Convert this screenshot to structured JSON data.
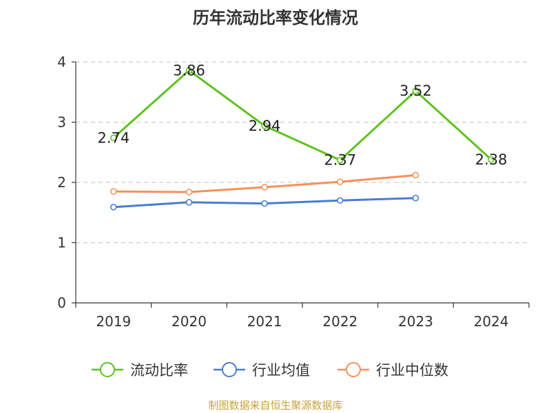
{
  "chart_data": {
    "type": "line",
    "title": "历年流动比率变化情况",
    "categories": [
      "2019",
      "2020",
      "2021",
      "2022",
      "2023",
      "2024"
    ],
    "ylim": [
      0,
      4
    ],
    "yticks": [
      "0",
      "1",
      "2",
      "3",
      "4"
    ],
    "grid": true,
    "legend_position": "bottom",
    "series": [
      {
        "name": "流动比率",
        "color": "#5cc31c",
        "values": [
          2.74,
          3.86,
          2.94,
          2.37,
          3.52,
          2.38
        ],
        "labels": [
          "2.74",
          "3.86",
          "2.94",
          "2.37",
          "3.52",
          "2.38"
        ]
      },
      {
        "name": "行业均值",
        "color": "#4a7bd5",
        "values": [
          1.59,
          1.67,
          1.65,
          1.7,
          1.74,
          null
        ]
      },
      {
        "name": "行业中位数",
        "color": "#f5905a",
        "values": [
          1.85,
          1.84,
          1.92,
          2.01,
          2.12,
          null
        ]
      }
    ]
  },
  "source": "制图数据来自恒生聚源数据库"
}
